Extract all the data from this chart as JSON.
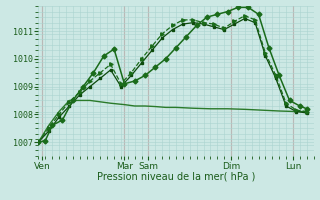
{
  "xlabel": "Pression niveau de la mer( hPa )",
  "background_color": "#cce8e4",
  "grid_color": "#aad4d0",
  "text_color": "#1a5c1a",
  "vline_color": "#cc9999",
  "ylim": [
    1006.5,
    1011.8
  ],
  "yticks": [
    1007,
    1008,
    1009,
    1010,
    1011
  ],
  "xlim": [
    0,
    160
  ],
  "day_labels": [
    "Ven",
    "Mar",
    "Sam",
    "Dim",
    "Lun"
  ],
  "day_positions": [
    2,
    50,
    64,
    112,
    148
  ],
  "line1_x": [
    0,
    4,
    8,
    14,
    20,
    26,
    32,
    38,
    44,
    50,
    56,
    62,
    68,
    74,
    80,
    86,
    92,
    98,
    104,
    110,
    116,
    122,
    128,
    134,
    140,
    146,
    152,
    156
  ],
  "line1_y": [
    1007.0,
    1007.05,
    1007.6,
    1007.8,
    1008.5,
    1009.0,
    1009.5,
    1010.1,
    1010.35,
    1009.1,
    1009.2,
    1009.4,
    1009.7,
    1010.0,
    1010.4,
    1010.8,
    1011.2,
    1011.5,
    1011.6,
    1011.7,
    1011.85,
    1011.85,
    1011.6,
    1010.4,
    1009.4,
    1008.5,
    1008.3,
    1008.2
  ],
  "line2_x": [
    0,
    6,
    12,
    18,
    24,
    30,
    36,
    42,
    48,
    54,
    60,
    66,
    72,
    78,
    84,
    90,
    96,
    102,
    108,
    114,
    120,
    126,
    132,
    138,
    144,
    150,
    156
  ],
  "line2_y": [
    1007.0,
    1007.5,
    1008.0,
    1008.45,
    1008.8,
    1009.2,
    1009.5,
    1009.8,
    1009.1,
    1009.5,
    1010.0,
    1010.45,
    1010.9,
    1011.2,
    1011.4,
    1011.4,
    1011.3,
    1011.25,
    1011.1,
    1011.35,
    1011.55,
    1011.4,
    1010.2,
    1009.4,
    1008.4,
    1008.15,
    1008.1
  ],
  "line3_x": [
    0,
    6,
    12,
    18,
    24,
    30,
    36,
    42,
    50,
    56,
    62,
    68,
    74,
    80,
    90,
    100,
    110,
    120,
    130,
    140,
    150,
    156
  ],
  "line3_y": [
    1007.0,
    1007.6,
    1008.1,
    1008.5,
    1008.5,
    1008.5,
    1008.45,
    1008.4,
    1008.35,
    1008.3,
    1008.3,
    1008.28,
    1008.25,
    1008.25,
    1008.22,
    1008.2,
    1008.2,
    1008.18,
    1008.15,
    1008.12,
    1008.1,
    1008.1
  ],
  "line4_x": [
    0,
    6,
    12,
    18,
    24,
    30,
    36,
    42,
    48,
    54,
    60,
    66,
    72,
    78,
    84,
    90,
    96,
    102,
    108,
    114,
    120,
    126,
    132,
    138,
    144,
    150,
    156
  ],
  "line4_y": [
    1007.0,
    1007.4,
    1007.9,
    1008.3,
    1008.7,
    1009.0,
    1009.3,
    1009.6,
    1009.0,
    1009.4,
    1009.85,
    1010.3,
    1010.75,
    1011.05,
    1011.25,
    1011.3,
    1011.25,
    1011.15,
    1011.05,
    1011.25,
    1011.45,
    1011.3,
    1010.1,
    1009.3,
    1008.3,
    1008.1,
    1008.05
  ],
  "line_color_main": "#1a6b1a",
  "line_color_dark": "#0d4a0d",
  "line_color_flat": "#2a7a2a"
}
